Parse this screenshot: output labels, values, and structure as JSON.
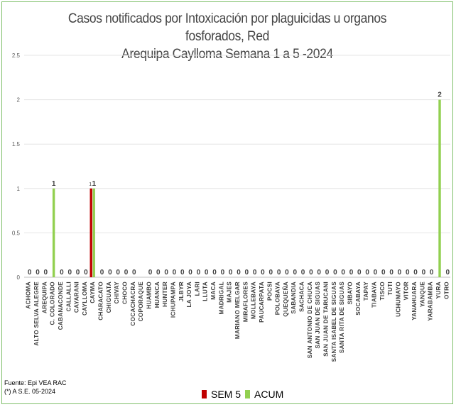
{
  "chart_data": {
    "type": "bar",
    "title_lines": [
      "Casos notificados por Intoxicación por plaguicidas u organos fosforados, Red",
      "Arequipa Caylloma Semana 1 a 5 -2024"
    ],
    "ylim": [
      0,
      2.5
    ],
    "yticks": [
      "0",
      "0.5",
      "1",
      "1.5",
      "2",
      "2.5"
    ],
    "grid": true,
    "legend_position": "bottom",
    "categories": [
      "ACHOMA",
      "ALTO SELVA ALEGRE",
      "AREQUIPA",
      "C. COLORADO",
      "CABANACONDE",
      "CALLALLI",
      "CAYARANI",
      "CAYLLOMA",
      "CAYMA",
      "CHARACATO",
      "CHIGUATA",
      "CHIVAY",
      "CHOCO",
      "COCACHACRA",
      "COPORAQUE",
      "HUAMBO",
      "HUANCA",
      "HUNTER",
      "ICHUPAMPA",
      "JLBYR",
      "LA JOYA",
      "LARI",
      "LLUTA",
      "MACA",
      "MADRIGAL",
      "MAJES",
      "MARIANO MELGAR",
      "MIRAFLORES",
      "MOLLEBAYA",
      "PAUCARPATA",
      "POCSI",
      "POLOBAYA",
      "QUEQUEÑA",
      "SABANDIA",
      "SACHACA",
      "SAN ANTONIO DE CHUCA",
      "SAN JUAN DE SIGUAS",
      "SAN JUAN DE TARUCANI",
      "SANTA ISABEL DE SIGUAS",
      "SANTA RITA DE SIGUAS",
      "SIBAYO",
      "SOCABAYA",
      "TAPAY",
      "TIABAYA",
      "TISCO",
      "TUTI",
      "UCHUMAYO",
      "VITOR",
      "YANAHUARA",
      "YANQUE",
      "YARABAMBA",
      "YURA",
      "OTRO"
    ],
    "series": [
      {
        "name": "SEM 5",
        "color": "#c00000",
        "values": [
          0,
          0,
          0,
          0,
          0,
          0,
          0,
          0,
          1,
          0,
          0,
          0,
          0,
          0,
          0,
          0,
          0,
          0,
          0,
          0,
          0,
          0,
          0,
          0,
          0,
          0,
          0,
          0,
          0,
          0,
          0,
          0,
          0,
          0,
          0,
          0,
          0,
          0,
          0,
          0,
          0,
          0,
          0,
          0,
          0,
          0,
          0,
          0,
          0,
          0,
          0,
          0,
          0
        ]
      },
      {
        "name": "ACUM",
        "color": "#92d050",
        "values": [
          0,
          0,
          0,
          1,
          0,
          0,
          0,
          0,
          1,
          0,
          0,
          0,
          0,
          0,
          0,
          0,
          0,
          0,
          0,
          0,
          0,
          0,
          0,
          0,
          0,
          0,
          0,
          0,
          0,
          0,
          0,
          0,
          0,
          0,
          0,
          0,
          0,
          0,
          0,
          0,
          0,
          0,
          0,
          0,
          0,
          0,
          0,
          0,
          0,
          0,
          0,
          2,
          0
        ]
      }
    ],
    "data_labels": {
      "ACUM": [
        "0",
        "0",
        "0",
        "1",
        "0",
        "0",
        "0",
        "0",
        "1",
        "0",
        "0",
        "0",
        "0",
        "0",
        "",
        "0",
        "0",
        "0",
        "0",
        "0",
        "0",
        "0",
        "0",
        "0",
        "0",
        "0",
        "0",
        "0",
        "0",
        "0",
        "0",
        "0",
        "0",
        "0",
        "0",
        "0",
        "0",
        "0",
        "0",
        "0",
        "0",
        "0",
        "0",
        "0",
        "0",
        "0",
        "0",
        "0",
        "0",
        "0",
        "0",
        "2",
        "0"
      ],
      "SEM 5": [
        "",
        "",
        "",
        "",
        "",
        "",
        "",
        "",
        "1",
        "",
        "",
        "",
        "",
        "",
        "",
        "",
        "",
        "",
        "",
        "",
        "",
        "",
        "",
        "",
        "",
        "",
        "",
        "",
        "",
        "",
        "",
        "",
        "",
        "",
        "",
        "",
        "",
        "",
        "",
        "",
        "",
        "",
        "",
        "",
        "",
        "",
        "",
        "",
        "",
        "",
        "",
        "",
        ""
      ]
    }
  },
  "footer": {
    "source": "Fuente: Epi VEA RAC",
    "note": "(*) A S.E. 05-2024"
  }
}
